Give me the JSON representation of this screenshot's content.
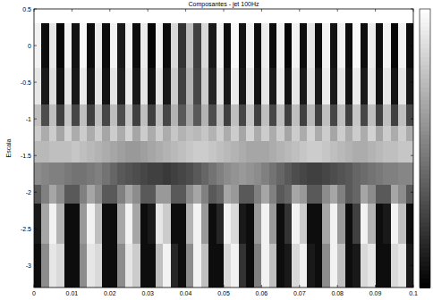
{
  "chart_data": {
    "type": "heatmap",
    "title": "Composantes - jet 100Hz",
    "y_label": "Escala",
    "xlim": [
      0,
      0.1
    ],
    "ylim": [
      -3.3,
      0.5
    ],
    "xticks": [
      0,
      0.01,
      0.02,
      0.03,
      0.04,
      0.05,
      0.06,
      0.07,
      0.08,
      0.09,
      0.1
    ],
    "yticks": [
      0.5,
      0,
      -0.5,
      -1,
      -1.5,
      -2,
      -2.5,
      -3
    ],
    "x_edges": [
      0,
      0.002,
      0.004,
      0.006,
      0.008,
      0.01,
      0.012,
      0.014,
      0.016,
      0.018,
      0.02,
      0.022,
      0.024,
      0.026,
      0.028,
      0.03,
      0.032,
      0.034,
      0.036,
      0.038,
      0.04,
      0.042,
      0.044,
      0.046,
      0.048,
      0.05,
      0.052,
      0.054,
      0.056,
      0.058,
      0.06,
      0.062,
      0.064,
      0.066,
      0.068,
      0.07,
      0.072,
      0.074,
      0.076,
      0.078,
      0.08,
      0.082,
      0.084,
      0.086,
      0.088,
      0.09,
      0.092,
      0.094,
      0.096,
      0.098,
      0.1
    ],
    "y_edges": [
      0.3,
      -0.3,
      -0.8,
      -1.1,
      -1.3,
      -1.6,
      -1.9,
      -2.15,
      -2.7,
      -3.3
    ],
    "cells": [
      [
        0.9,
        -0.9,
        0.8,
        -0.95,
        0.9,
        -0.85,
        0.95,
        -0.9,
        0.85,
        -0.9,
        0.9,
        -0.8,
        0.9,
        -0.9,
        0.85,
        -0.95,
        0.9,
        -0.9,
        0.7,
        -0.6,
        0.5,
        -0.5,
        0.7,
        -0.8,
        0.9,
        -0.9,
        0.95,
        -0.85,
        0.9,
        -0.9,
        0.85,
        -0.9,
        0.9,
        -0.95,
        0.9,
        -0.9,
        0.8,
        -0.9,
        0.9,
        -0.85,
        0.9,
        -0.9,
        0.95,
        -0.9,
        0.85,
        -0.9,
        0.9,
        -0.95,
        0.9,
        -0.9
      ],
      [
        0.8,
        -0.8,
        0.75,
        -0.85,
        0.8,
        -0.8,
        0.85,
        -0.8,
        0.8,
        -0.85,
        0.8,
        -0.75,
        0.85,
        -0.8,
        0.8,
        -0.85,
        0.8,
        -0.8,
        0.6,
        -0.5,
        0.4,
        -0.45,
        0.6,
        -0.7,
        0.8,
        -0.8,
        0.85,
        -0.8,
        0.8,
        -0.85,
        0.8,
        -0.8,
        0.85,
        -0.85,
        0.8,
        -0.8,
        0.75,
        -0.8,
        0.85,
        -0.8,
        0.8,
        -0.85,
        0.85,
        -0.8,
        0.8,
        -0.85,
        0.8,
        -0.85,
        0.8,
        -0.8
      ],
      [
        0.5,
        -0.4,
        0.5,
        -0.5,
        0.55,
        -0.45,
        0.5,
        -0.5,
        0.5,
        -0.45,
        0.5,
        -0.4,
        0.55,
        -0.5,
        0.5,
        -0.5,
        0.5,
        -0.45,
        0.4,
        -0.3,
        0.3,
        -0.3,
        0.4,
        -0.4,
        0.5,
        -0.5,
        0.5,
        -0.45,
        0.55,
        -0.5,
        0.5,
        -0.45,
        0.5,
        -0.5,
        0.5,
        -0.5,
        0.45,
        -0.5,
        0.5,
        -0.45,
        0.5,
        -0.5,
        0.55,
        -0.45,
        0.5,
        -0.5,
        0.5,
        -0.5,
        0.5,
        -0.45
      ],
      [
        0.6,
        0.35,
        0.6,
        0.3,
        0.65,
        0.35,
        0.6,
        0.35,
        0.6,
        0.3,
        0.6,
        0.35,
        0.65,
        0.3,
        0.6,
        0.35,
        0.6,
        0.35,
        0.55,
        0.4,
        0.5,
        0.45,
        0.55,
        0.4,
        0.6,
        0.35,
        0.6,
        0.3,
        0.65,
        0.35,
        0.6,
        0.35,
        0.6,
        0.3,
        0.6,
        0.35,
        0.65,
        0.35,
        0.6,
        0.3,
        0.6,
        0.35,
        0.6,
        0.35,
        0.65,
        0.3,
        0.6,
        0.35,
        0.6,
        0.35
      ],
      [
        0.45,
        0.45,
        0.5,
        0.5,
        0.5,
        0.55,
        0.5,
        0.45,
        0.4,
        0.35,
        0.3,
        0.25,
        0.2,
        0.2,
        0.25,
        0.3,
        0.35,
        0.4,
        0.45,
        0.5,
        0.55,
        0.6,
        0.6,
        0.55,
        0.5,
        0.45,
        0.4,
        0.35,
        0.3,
        0.3,
        0.3,
        0.35,
        0.4,
        0.45,
        0.5,
        0.55,
        0.6,
        0.6,
        0.55,
        0.5,
        0.45,
        0.4,
        0.35,
        0.35,
        0.4,
        0.45,
        0.5,
        0.5,
        0.55,
        0.55
      ],
      [
        0.1,
        0.05,
        0,
        0,
        -0.05,
        -0.1,
        -0.1,
        -0.05,
        0,
        -0.1,
        -0.2,
        -0.3,
        -0.35,
        -0.4,
        -0.45,
        -0.5,
        -0.5,
        -0.55,
        -0.5,
        -0.45,
        -0.4,
        -0.3,
        -0.2,
        -0.1,
        0,
        0.1,
        0.15,
        0.2,
        0.15,
        0.1,
        0,
        -0.1,
        -0.2,
        -0.3,
        -0.4,
        -0.45,
        -0.5,
        -0.5,
        -0.45,
        -0.4,
        -0.35,
        -0.3,
        -0.2,
        -0.15,
        -0.1,
        -0.05,
        0,
        0,
        0.05,
        0.05
      ],
      [
        -0.3,
        0,
        0.3,
        0.1,
        -0.3,
        -0.3,
        0,
        0.3,
        0.1,
        -0.3,
        -0.3,
        0,
        0.3,
        0.1,
        -0.3,
        -0.3,
        0.2,
        0.2,
        -0.3,
        -0.3,
        0.1,
        0.3,
        0,
        -0.3,
        -0.2,
        0.3,
        0.2,
        -0.3,
        -0.3,
        0,
        0.3,
        0,
        -0.3,
        -0.2,
        0.3,
        0.2,
        -0.3,
        -0.3,
        0.1,
        0.3,
        0,
        -0.3,
        -0.2,
        0.3,
        0.1,
        -0.3,
        -0.3,
        0.3,
        0.1,
        -0.3
      ],
      [
        -0.8,
        0.3,
        0.9,
        0.4,
        -0.9,
        -0.9,
        0.2,
        0.9,
        0.5,
        -0.9,
        -0.9,
        0.3,
        0.9,
        0.3,
        -0.9,
        -0.8,
        0.8,
        0.6,
        -0.9,
        -0.9,
        0.4,
        0.9,
        0.2,
        -0.9,
        -0.7,
        0.9,
        0.7,
        -0.8,
        -0.9,
        0.2,
        0.9,
        0.2,
        -0.9,
        -0.6,
        0.9,
        0.6,
        -0.9,
        -0.9,
        0.3,
        0.9,
        0.2,
        -0.9,
        -0.5,
        0.9,
        0.4,
        -0.9,
        -0.8,
        0.9,
        0.5,
        -0.9
      ],
      [
        -0.9,
        0.1,
        0.8,
        0.7,
        -0.9,
        -0.9,
        0.1,
        0.8,
        0.7,
        -0.9,
        -0.9,
        0.1,
        0.8,
        0.6,
        -0.9,
        -0.9,
        0.5,
        0.9,
        -0.7,
        -0.9,
        0.1,
        0.9,
        0.5,
        -0.9,
        -0.9,
        0.7,
        0.9,
        -0.6,
        -0.9,
        0,
        0.9,
        0.5,
        -0.9,
        -0.8,
        0.7,
        0.9,
        -0.8,
        -0.9,
        0.1,
        0.9,
        0.5,
        -0.9,
        -0.8,
        0.7,
        0.8,
        -0.9,
        -0.9,
        0.7,
        0.8,
        -0.8
      ]
    ],
    "colorbar_range": [
      -1,
      1
    ]
  }
}
